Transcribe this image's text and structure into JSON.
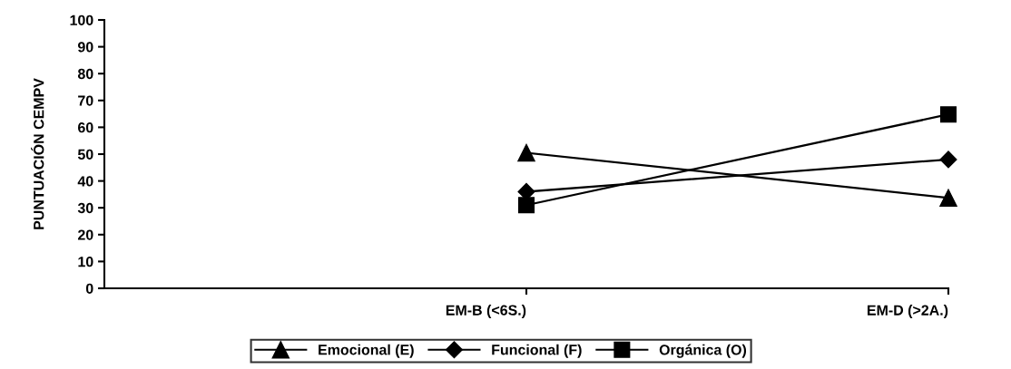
{
  "chart_data": {
    "type": "line",
    "ylabel": "PUNTUACIÓN CEMPV",
    "categories": [
      null,
      "EM-B (<6S.)",
      "EM-D (>2A.)"
    ],
    "series": [
      {
        "name": "Emocional (E)",
        "color": "#000000",
        "marker": "triangle",
        "values": [
          null,
          50.5,
          33.7
        ]
      },
      {
        "name": "Funcional (F)",
        "color": "#000000",
        "marker": "diamond",
        "values": [
          null,
          36,
          48
        ]
      },
      {
        "name": "Orgánica (O)",
        "color": "#000000",
        "marker": "square",
        "values": [
          null,
          31,
          64.8
        ]
      }
    ],
    "ylim": [
      0,
      100
    ],
    "yticks": [
      0,
      10,
      20,
      30,
      40,
      50,
      60,
      70,
      80,
      90,
      100
    ],
    "grid": false,
    "legend": "bottom",
    "line_style": "solid"
  }
}
